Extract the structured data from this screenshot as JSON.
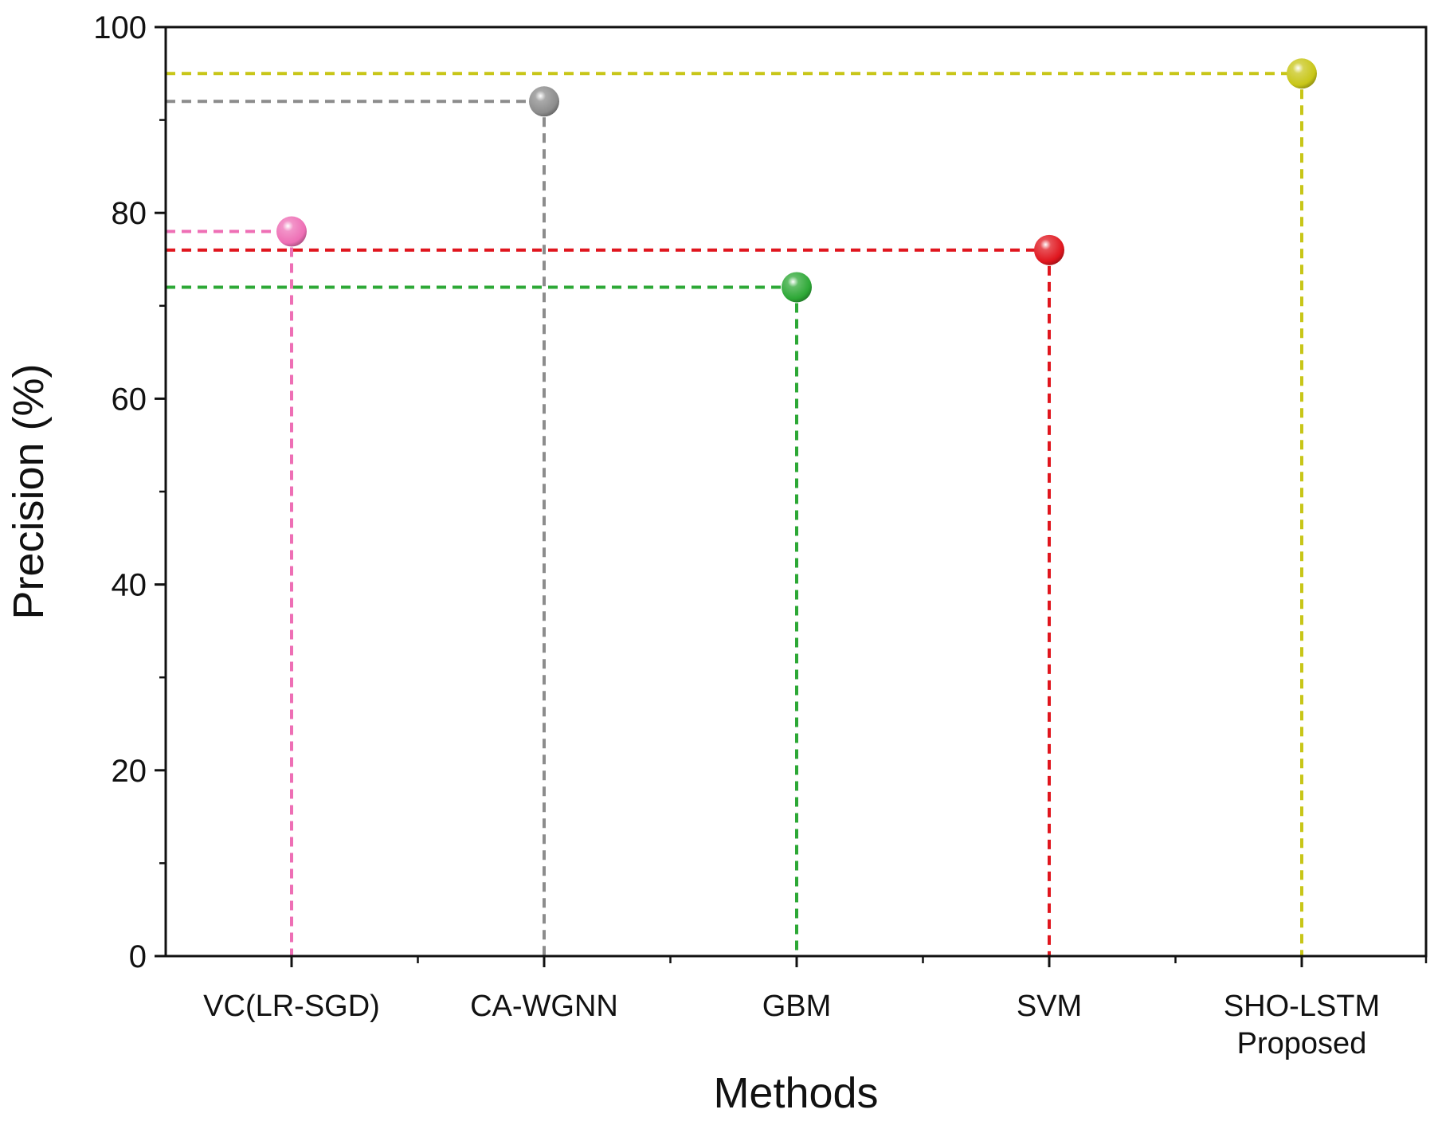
{
  "chart_data": {
    "type": "scatter",
    "title": "",
    "xlabel": "Methods",
    "ylabel": "Precision (%)",
    "ylim": [
      0,
      100
    ],
    "yticks": [
      0,
      20,
      40,
      60,
      80,
      100
    ],
    "minor_ticks": true,
    "grid": false,
    "drop_lines": true,
    "categories": [
      {
        "label": "VC(LR-SGD)",
        "sublabel": ""
      },
      {
        "label": "CA-WGNN",
        "sublabel": ""
      },
      {
        "label": "GBM",
        "sublabel": ""
      },
      {
        "label": "SVM",
        "sublabel": ""
      },
      {
        "label": "SHO-LSTM",
        "sublabel": "Proposed"
      }
    ],
    "values": [
      78,
      92,
      72,
      76,
      95
    ],
    "colors": [
      "#ee6fb5",
      "#8c8c8c",
      "#2da836",
      "#e0161e",
      "#c8c618"
    ]
  }
}
